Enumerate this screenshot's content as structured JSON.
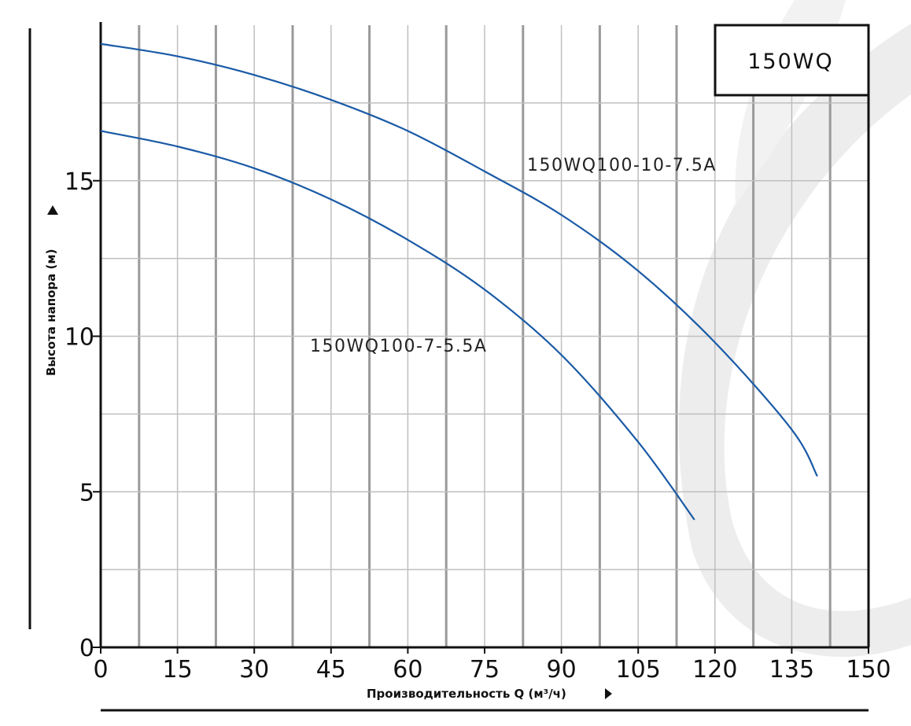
{
  "colors": {
    "curve": "#1a5aa6",
    "grid": "#bfbfbf",
    "grid_dark": "#9a9a9a",
    "axis": "#111111",
    "watermark": "#ececec"
  },
  "model_box": {
    "label": "150WQ"
  },
  "chart_data": {
    "type": "line",
    "xlabel": "Производительность Q (м³/ч)",
    "ylabel": "Высота напора (м)",
    "xlim": [
      0,
      150
    ],
    "ylim": [
      0,
      20
    ],
    "x_ticks": [
      0,
      15,
      30,
      45,
      60,
      75,
      90,
      105,
      120,
      135,
      150
    ],
    "y_ticks": [
      0,
      5,
      10,
      15
    ],
    "grid": true,
    "grid_x_step": 7.5,
    "grid_y_step": 2.5,
    "series": [
      {
        "name": "150WQ100-10-7.5A",
        "x": [
          0,
          15,
          30,
          45,
          60,
          75,
          90,
          105,
          120,
          135,
          140
        ],
        "y": [
          19.4,
          19.0,
          18.4,
          17.6,
          16.6,
          15.3,
          13.9,
          12.1,
          9.8,
          7.0,
          5.5
        ]
      },
      {
        "name": "150WQ100-7-5.5A",
        "x": [
          0,
          15,
          30,
          45,
          60,
          75,
          90,
          105,
          116
        ],
        "y": [
          16.6,
          16.1,
          15.4,
          14.4,
          13.1,
          11.5,
          9.4,
          6.6,
          4.1
        ]
      }
    ]
  }
}
